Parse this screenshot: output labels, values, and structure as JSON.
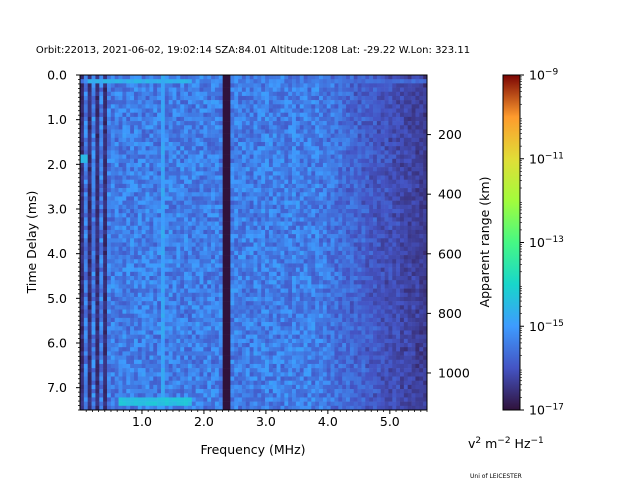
{
  "chart_data": {
    "type": "heatmap",
    "title": "Orbit:22013, 2021-06-02, 19:02:14 SZA:84.01 Altitude:1208 Lat: -29.22 W.Lon: 323.11",
    "xlabel": "Frequency (MHz)",
    "ylabel": "Time Delay (ms)",
    "ylabel_right": "Apparent range (km)",
    "xlim": [
      0.0,
      5.6
    ],
    "ylim": [
      7.5,
      0.0
    ],
    "x_ticks": [
      1.0,
      2.0,
      3.0,
      4.0,
      5.0
    ],
    "x_tick_labels": [
      "1.0",
      "2.0",
      "3.0",
      "4.0",
      "5.0"
    ],
    "y_ticks": [
      0.0,
      1.0,
      2.0,
      3.0,
      4.0,
      5.0,
      6.0,
      7.0
    ],
    "y_tick_labels": [
      "0.0",
      "1.0",
      "2.0",
      "3.0",
      "4.0",
      "5.0",
      "6.0",
      "7.0"
    ],
    "range_km_per_ms": 149.9,
    "range_ticks_km": [
      200,
      400,
      600,
      800,
      1000
    ],
    "range_tick_labels": [
      "200",
      "400",
      "600",
      "800",
      "1000"
    ],
    "colorbar": {
      "scale": "log",
      "vmin_exp": -17,
      "vmax_exp": -9,
      "tick_labels": [
        {
          "base": "10",
          "exp": "−9",
          "value_exp": -9
        },
        {
          "base": "10",
          "exp": "−11",
          "value_exp": -11
        },
        {
          "base": "10",
          "exp": "−13",
          "value_exp": -13
        },
        {
          "base": "10",
          "exp": "−15",
          "value_exp": -15
        },
        {
          "base": "10",
          "exp": "−17",
          "value_exp": -17
        }
      ],
      "colormap": "turbo",
      "unit": {
        "v": "v",
        "v_exp": "2",
        "m": " m",
        "m_exp": "−2",
        "hz": " Hz",
        "hz_exp": "−1"
      }
    },
    "features": [
      {
        "kind": "horizontal-band",
        "delay_ms": 0.15,
        "freq_from_mhz": 0.0,
        "freq_to_mhz": 5.6,
        "level_exp": -15.8
      },
      {
        "kind": "horizontal-band-bright",
        "delay_ms": 0.15,
        "freq_from_mhz": 0.1,
        "freq_to_mhz": 1.8,
        "level_exp": -14.8
      },
      {
        "kind": "vertical-line-bright",
        "freq_mhz": 1.35,
        "level_exp": -15.0
      },
      {
        "kind": "vertical-line-dark",
        "freq_mhz": 2.38,
        "level_exp": -17.0
      },
      {
        "kind": "low-freq-stripes",
        "freq_from_mhz": 0.0,
        "freq_to_mhz": 0.45
      },
      {
        "kind": "spot",
        "delay_ms": 1.85,
        "freq_mhz": 0.05,
        "level_exp": -14.5
      },
      {
        "kind": "horizontal-band-bright",
        "delay_ms": 7.3,
        "freq_from_mhz": 0.6,
        "freq_to_mhz": 1.8,
        "level_exp": -14.5
      },
      {
        "kind": "noise-floor-fade",
        "freq_from_mhz": 3.8,
        "freq_to_mhz": 5.6,
        "level_exp": -16.9
      }
    ],
    "grid": false
  },
  "credit": "Uni of LEICESTER"
}
